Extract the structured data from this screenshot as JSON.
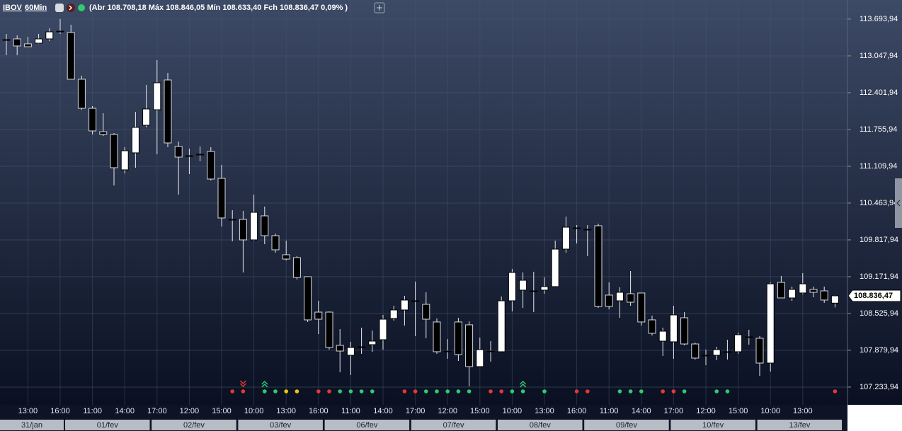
{
  "chart_data": {
    "type": "candlestick",
    "symbol": "IBOV",
    "interval": "60Min",
    "ohlc_summary": "(Abr 108.708,18 Máx 108.846,05 Mín 108.633,40 Fch 108.836,47 0,09% )",
    "up_color": "#ffffff",
    "down_color": "#000000",
    "grid": true,
    "ylim": [
      106985,
      114029
    ],
    "yticks": [
      {
        "value": 113693.94,
        "label": "113.693,94"
      },
      {
        "value": 113047.94,
        "label": "113.047,94"
      },
      {
        "value": 112401.94,
        "label": "112.401,94"
      },
      {
        "value": 111755.94,
        "label": "111.755,94"
      },
      {
        "value": 111109.94,
        "label": "111.109,94"
      },
      {
        "value": 110463.94,
        "label": "110.463,94"
      },
      {
        "value": 109817.94,
        "label": "109.817,94"
      },
      {
        "value": 109171.94,
        "label": "109.171,94"
      },
      {
        "value": 108525.94,
        "label": "108.525,94"
      },
      {
        "value": 107879.94,
        "label": "107.879,94"
      },
      {
        "value": 107233.94,
        "label": "107.233,94"
      }
    ],
    "last_price": {
      "value": 108836.47,
      "label": "108.836,47"
    },
    "categories": [
      null,
      null,
      "13:00",
      null,
      null,
      "16:00",
      null,
      null,
      "11:00",
      null,
      null,
      "14:00",
      null,
      null,
      "17:00",
      null,
      null,
      "12:00",
      null,
      null,
      "15:00",
      null,
      null,
      "10:00",
      null,
      null,
      "13:00",
      null,
      null,
      "16:00",
      null,
      null,
      "11:00",
      null,
      null,
      "14:00",
      null,
      null,
      "17:00",
      null,
      null,
      "12:00",
      null,
      null,
      "15:00",
      null,
      null,
      "10:00",
      null,
      null,
      "13:00",
      null,
      null,
      "16:00",
      null,
      null,
      "11:00",
      null,
      null,
      "14:00",
      null,
      null,
      "17:00",
      null,
      null,
      "12:00",
      null,
      null,
      "15:00",
      null,
      null,
      "10:00",
      null,
      null,
      "13:00",
      null,
      null,
      null
    ],
    "dates": [
      "31/jan",
      "01/fev",
      "02/fev",
      "03/fev",
      "06/fev",
      "07/fev",
      "08/fev",
      "09/fev",
      "10/fev",
      "13/fev"
    ],
    "ohlc": [
      [
        113333,
        113433,
        113060,
        113333
      ],
      [
        113346,
        113408,
        113060,
        113222
      ],
      [
        113259,
        113383,
        113209,
        113209
      ],
      [
        113271,
        113433,
        113259,
        113346
      ],
      [
        113346,
        113532,
        113308,
        113470
      ],
      [
        113482,
        113694,
        113433,
        113482
      ],
      [
        113458,
        113594,
        112638,
        112638
      ],
      [
        112638,
        112700,
        112103,
        112128
      ],
      [
        112128,
        112166,
        111669,
        111731
      ],
      [
        111718,
        112041,
        111644,
        111669
      ],
      [
        111669,
        111694,
        110774,
        111085
      ],
      [
        111048,
        111445,
        110985,
        111383
      ],
      [
        111346,
        112066,
        111085,
        111793
      ],
      [
        111830,
        112538,
        111793,
        112116
      ],
      [
        112103,
        112973,
        111321,
        112576
      ],
      [
        112625,
        112749,
        111445,
        111520
      ],
      [
        111457,
        111544,
        110613,
        111271
      ],
      [
        111296,
        111420,
        110973,
        111296
      ],
      [
        111321,
        111457,
        111197,
        111321
      ],
      [
        111370,
        111445,
        110861,
        110886
      ],
      [
        110898,
        111134,
        110054,
        110203
      ],
      [
        110178,
        110339,
        109793,
        110178
      ],
      [
        110178,
        110327,
        109246,
        109818
      ],
      [
        109818,
        110613,
        109805,
        110302
      ],
      [
        110240,
        110402,
        109743,
        109892
      ],
      [
        109892,
        109929,
        109594,
        109644
      ],
      [
        109557,
        109805,
        109457,
        109482
      ],
      [
        109507,
        109532,
        109122,
        109159
      ],
      [
        109172,
        109172,
        108377,
        108414
      ],
      [
        108550,
        108749,
        108165,
        108426
      ],
      [
        108550,
        108563,
        107892,
        107929
      ],
      [
        107967,
        108252,
        107495,
        107867
      ],
      [
        107793,
        108029,
        107445,
        107929
      ],
      [
        107942,
        108277,
        107818,
        107942
      ],
      [
        107979,
        108227,
        107855,
        108041
      ],
      [
        108066,
        108501,
        107892,
        108426
      ],
      [
        108439,
        108662,
        108401,
        108588
      ],
      [
        108588,
        108836,
        108314,
        108762
      ],
      [
        108749,
        109085,
        108128,
        108749
      ],
      [
        108687,
        108898,
        108091,
        108426
      ],
      [
        108377,
        108439,
        107818,
        107855
      ],
      [
        107867,
        108078,
        107731,
        107867
      ],
      [
        108377,
        108451,
        107693,
        107805
      ],
      [
        108327,
        108389,
        107246,
        107594
      ],
      [
        107594,
        108103,
        107594,
        107892
      ],
      [
        107867,
        108041,
        107681,
        107867
      ],
      [
        107855,
        108824,
        107855,
        108749
      ],
      [
        108749,
        109308,
        108563,
        109246
      ],
      [
        108936,
        109246,
        108625,
        109109
      ],
      [
        108923,
        109259,
        108550,
        108923
      ],
      [
        108936,
        109159,
        108873,
        108998
      ],
      [
        108998,
        109805,
        108998,
        109656
      ],
      [
        109656,
        110228,
        109594,
        110041
      ],
      [
        110029,
        110078,
        109756,
        110029
      ],
      [
        110004,
        110078,
        109532,
        110004
      ],
      [
        110066,
        110103,
        108625,
        108650
      ],
      [
        108849,
        109072,
        108600,
        108650
      ],
      [
        108749,
        108985,
        108451,
        108898
      ],
      [
        108873,
        109271,
        108662,
        108724
      ],
      [
        108886,
        108886,
        108314,
        108377
      ],
      [
        108414,
        108488,
        108140,
        108178
      ],
      [
        108041,
        108277,
        107780,
        108215
      ],
      [
        108029,
        108662,
        107731,
        108501
      ],
      [
        108451,
        108550,
        107967,
        107991
      ],
      [
        107991,
        108016,
        107718,
        107743
      ],
      [
        107793,
        107892,
        107619,
        107793
      ],
      [
        107793,
        107942,
        107706,
        107892
      ],
      [
        107855,
        108066,
        107718,
        107855
      ],
      [
        107855,
        108190,
        107818,
        108153
      ],
      [
        108116,
        108240,
        107979,
        108116
      ],
      [
        108091,
        108128,
        107432,
        107656
      ],
      [
        107656,
        109072,
        107507,
        109047
      ],
      [
        109072,
        109184,
        108799,
        108799
      ],
      [
        108799,
        108998,
        108749,
        108948
      ],
      [
        108886,
        109234,
        108861,
        109047
      ],
      [
        108948,
        108998,
        108811,
        108898
      ],
      [
        108923,
        108998,
        108712,
        108762
      ],
      [
        108708.18,
        108846.05,
        108633.4,
        108836.47
      ]
    ],
    "signals": [
      null,
      null,
      null,
      null,
      null,
      null,
      null,
      null,
      null,
      null,
      null,
      null,
      null,
      null,
      null,
      null,
      null,
      null,
      null,
      null,
      null,
      "#e53935",
      "#e53935",
      null,
      "#2ecc71",
      "#2ecc71",
      "#f1c40f",
      "#f1c40f",
      null,
      "#e53935",
      "#e53935",
      "#2ecc71",
      "#2ecc71",
      "#2ecc71",
      "#2ecc71",
      null,
      null,
      "#e53935",
      "#e53935",
      "#2ecc71",
      "#2ecc71",
      "#2ecc71",
      "#2ecc71",
      "#2ecc71",
      null,
      "#e53935",
      "#e53935",
      "#2ecc71",
      "#2ecc71",
      null,
      "#2ecc71",
      null,
      null,
      "#e53935",
      "#e53935",
      null,
      null,
      "#2ecc71",
      "#2ecc71",
      "#2ecc71",
      null,
      "#e53935",
      "#e53935",
      "#2ecc71",
      null,
      null,
      "#2ecc71",
      "#2ecc71",
      null,
      null,
      null,
      null,
      null,
      null,
      null,
      null,
      null,
      "#e53935"
    ],
    "arrows": [
      null,
      null,
      null,
      null,
      null,
      null,
      null,
      null,
      null,
      null,
      null,
      null,
      null,
      null,
      null,
      null,
      null,
      null,
      null,
      null,
      null,
      null,
      "down",
      null,
      "up",
      null,
      null,
      null,
      null,
      null,
      null,
      null,
      null,
      null,
      null,
      null,
      null,
      null,
      null,
      null,
      null,
      null,
      null,
      null,
      null,
      null,
      null,
      null,
      "up",
      null,
      null,
      null,
      null,
      null,
      null,
      null,
      null,
      null,
      null,
      null,
      null,
      null,
      null,
      null,
      null,
      null,
      null,
      null,
      null,
      null,
      null,
      null,
      null,
      null,
      null,
      null,
      null,
      null
    ]
  }
}
